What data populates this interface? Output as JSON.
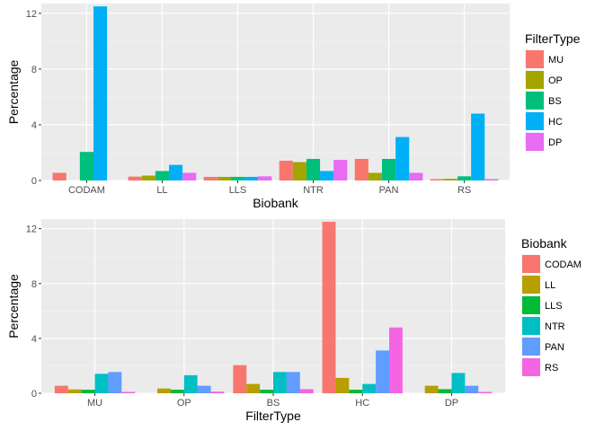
{
  "colors": [
    "#F8766D",
    "#B79F00",
    "#00BA38",
    "#00BFC4",
    "#619CFF",
    "#F564E3"
  ],
  "chart_data": [
    {
      "type": "bar",
      "xlabel": "Biobank",
      "ylabel": "Percentage",
      "ylim": [
        0,
        12.7
      ],
      "yticks": [
        0,
        4,
        8,
        12
      ],
      "grid": true,
      "legend_position": "right",
      "legend_title": "FilterType",
      "categories": [
        "CODAM",
        "LL",
        "LLS",
        "NTR",
        "PAN",
        "RS"
      ],
      "series": [
        {
          "name": "MU",
          "values": [
            0.55,
            0.28,
            0.26,
            1.42,
            1.55,
            0.1
          ],
          "color": "#F8766D"
        },
        {
          "name": "OP",
          "values": [
            0.0,
            0.35,
            0.26,
            1.32,
            0.55,
            0.12
          ],
          "color": "#A3A500"
        },
        {
          "name": "BS",
          "values": [
            2.05,
            0.68,
            0.26,
            1.55,
            1.55,
            0.3
          ],
          "color": "#00BF7D"
        },
        {
          "name": "HC",
          "values": [
            12.5,
            1.12,
            0.26,
            0.68,
            3.12,
            4.8
          ],
          "color": "#00B0F6"
        },
        {
          "name": "DP",
          "values": [
            0.0,
            0.55,
            0.3,
            1.48,
            0.55,
            0.1
          ],
          "color": "#E76BF3"
        }
      ]
    },
    {
      "type": "bar",
      "xlabel": "FilterType",
      "ylabel": "Percentage",
      "ylim": [
        0,
        12.7
      ],
      "yticks": [
        0,
        4,
        8,
        12
      ],
      "grid": true,
      "legend_position": "right",
      "legend_title": "Biobank",
      "categories": [
        "MU",
        "OP",
        "BS",
        "HC",
        "DP"
      ],
      "series": [
        {
          "name": "CODAM",
          "values": [
            0.55,
            0.0,
            2.05,
            12.5,
            0.0
          ],
          "color": "#F8766D"
        },
        {
          "name": "LL",
          "values": [
            0.28,
            0.35,
            0.68,
            1.12,
            0.55
          ],
          "color": "#B79F00"
        },
        {
          "name": "LLS",
          "values": [
            0.26,
            0.26,
            0.26,
            0.26,
            0.3
          ],
          "color": "#00BA38"
        },
        {
          "name": "NTR",
          "values": [
            1.42,
            1.32,
            1.55,
            0.68,
            1.48
          ],
          "color": "#00BFC4"
        },
        {
          "name": "PAN",
          "values": [
            1.55,
            0.55,
            1.55,
            3.12,
            0.55
          ],
          "color": "#619CFF"
        },
        {
          "name": "RS",
          "values": [
            0.1,
            0.12,
            0.3,
            4.8,
            0.1
          ],
          "color": "#F564E3"
        }
      ]
    }
  ]
}
